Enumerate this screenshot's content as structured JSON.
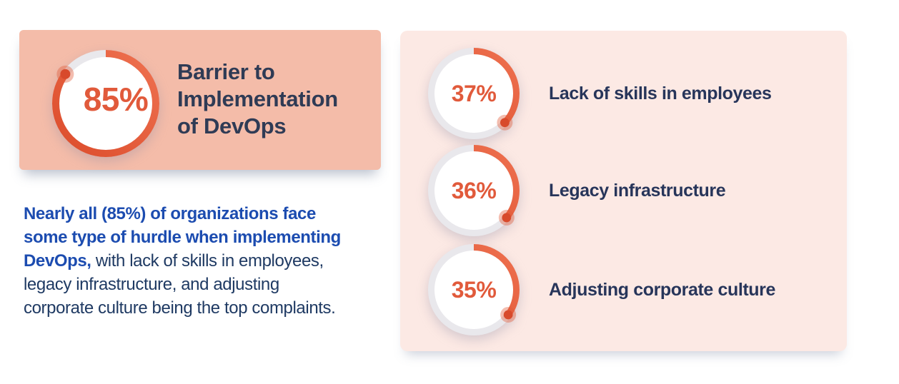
{
  "colors": {
    "page_bg": "#FFFFFF",
    "hero_card_bg": "#F4BCA9",
    "panel_bg": "#FCE9E4",
    "track": "#E9E8EC",
    "arc_from": "#DC4C2B",
    "arc_to": "#EE7150",
    "dot_core": "#D84A2B",
    "dot_halo": "rgba(226,90,56,0.40)",
    "percent_text": "#E15A3B",
    "heading_text": "#2F3B55",
    "body_text": "#1F3A63",
    "highlight_text": "#1C4CB0",
    "label_text": "#27355A"
  },
  "hero_card": {
    "percent_label": "85%",
    "value": 85,
    "title": "Barrier to\nImplementation\nof DevOps"
  },
  "summary": {
    "highlight": "Nearly all (85%) of organizations face\nsome type of hurdle when implementing\nDevOps,",
    "rest": " with lack of skills in employees,\nlegacy infrastructure, and adjusting\ncorporate culture being the top complaints."
  },
  "barriers": [
    {
      "percent_label": "37%",
      "value": 37,
      "label": "Lack of skills in employees"
    },
    {
      "percent_label": "36%",
      "value": 36,
      "label": "Legacy infrastructure"
    },
    {
      "percent_label": "35%",
      "value": 35,
      "label": "Adjusting corporate culture"
    }
  ],
  "chart_data": {
    "type": "pie",
    "variant": "donut-gauge-set",
    "title": "Barrier to Implementation of DevOps",
    "unit": "%",
    "overall_value": 85,
    "categories": [
      "Barrier to Implementation of DevOps",
      "Lack of skills in employees",
      "Legacy infrastructure",
      "Adjusting corporate culture"
    ],
    "values": [
      85,
      37,
      36,
      35
    ],
    "gauge_style": "arc starts at 12 o'clock, clockwise, dot marker at arc end, gray remainder track",
    "annotation": "Nearly all (85%) of organizations face some type of hurdle when implementing DevOps, with lack of skills in employees, legacy infrastructure, and adjusting corporate culture being the top complaints."
  }
}
